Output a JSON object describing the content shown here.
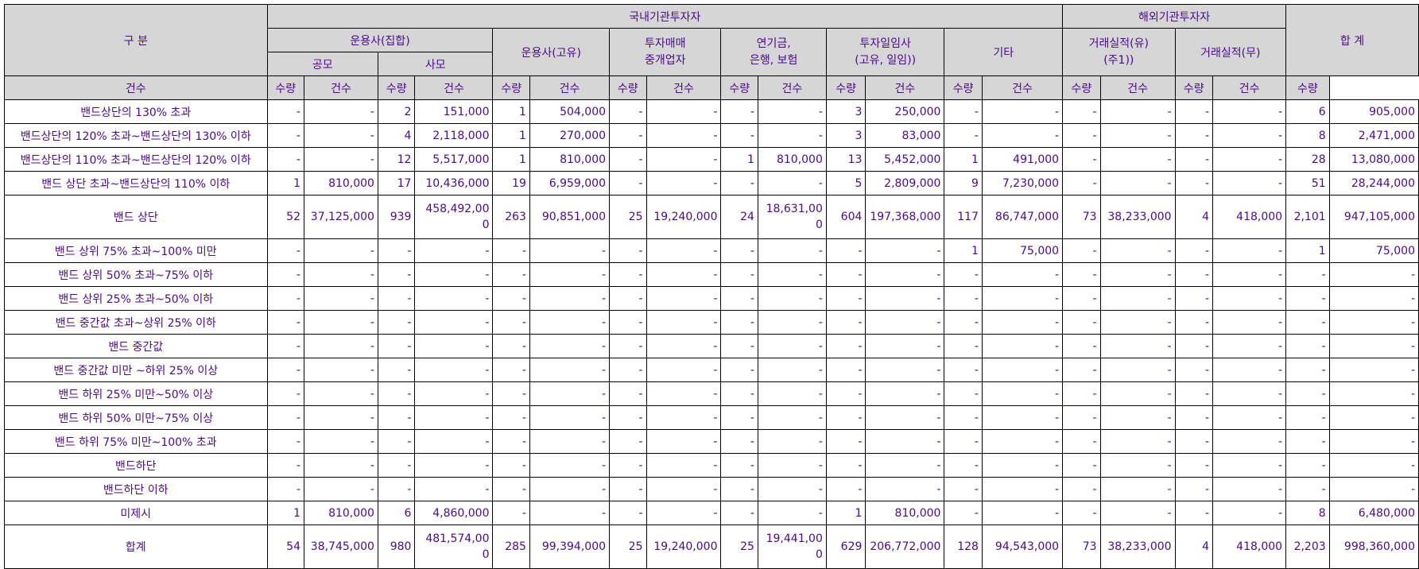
{
  "headers": {
    "category": "구 분",
    "domestic": "국내기관투자자",
    "overseas": "해외기관투자자",
    "total": "합 계",
    "am_collective": "운용사(집합)",
    "public": "공모",
    "private": "사모",
    "am_proprietary": "운용사(고유)",
    "broker": "투자매매\n중개업자",
    "pension": "연기금,\n은행, 보험",
    "advisor": "투자일임사\n(고유, 일임))",
    "other": "기타",
    "with_record": "거래실적(유)\n(주1))",
    "without_record": "거래실적(무)",
    "count": "건수",
    "quantity": "수량"
  },
  "rows": [
    {
      "label": "밴드상단의 130% 초과",
      "cells": [
        "-",
        "-",
        "2",
        "151,000",
        "1",
        "504,000",
        "-",
        "-",
        "-",
        "-",
        "3",
        "250,000",
        "-",
        "-",
        "-",
        "-",
        "-",
        "-",
        "6",
        "905,000"
      ]
    },
    {
      "label": "밴드상단의 120% 초과~밴드상단의 130% 이하",
      "cells": [
        "-",
        "-",
        "4",
        "2,118,000",
        "1",
        "270,000",
        "-",
        "-",
        "-",
        "-",
        "3",
        "83,000",
        "-",
        "-",
        "-",
        "-",
        "-",
        "-",
        "8",
        "2,471,000"
      ]
    },
    {
      "label": "밴드상단의 110% 초과~밴드상단의 120% 이하",
      "cells": [
        "-",
        "-",
        "12",
        "5,517,000",
        "1",
        "810,000",
        "-",
        "-",
        "1",
        "810,000",
        "13",
        "5,452,000",
        "1",
        "491,000",
        "-",
        "-",
        "-",
        "-",
        "28",
        "13,080,000"
      ]
    },
    {
      "label": "밴드 상단 초과~밴드상단의 110% 이하",
      "cells": [
        "1",
        "810,000",
        "17",
        "10,436,000",
        "19",
        "6,959,000",
        "-",
        "-",
        "-",
        "-",
        "5",
        "2,809,000",
        "9",
        "7,230,000",
        "-",
        "-",
        "-",
        "-",
        "51",
        "28,244,000"
      ]
    },
    {
      "label": "밴드 상단",
      "tall": true,
      "cells": [
        "52",
        "37,125,000",
        "939",
        "458,492,000",
        "263",
        "90,851,000",
        "25",
        "19,240,000",
        "24",
        "18,631,000",
        "604",
        "197,368,000",
        "117",
        "86,747,000",
        "73",
        "38,233,000",
        "4",
        "418,000",
        "2,101",
        "947,105,000"
      ]
    },
    {
      "label": "밴드 상위 75% 초과~100% 미만",
      "cells": [
        "-",
        "-",
        "-",
        "-",
        "-",
        "-",
        "-",
        "-",
        "-",
        "-",
        "-",
        "-",
        "1",
        "75,000",
        "-",
        "-",
        "-",
        "-",
        "1",
        "75,000"
      ]
    },
    {
      "label": "밴드 상위 50% 초과~75% 이하",
      "cells": [
        "-",
        "-",
        "-",
        "-",
        "-",
        "-",
        "-",
        "-",
        "-",
        "-",
        "-",
        "-",
        "-",
        "-",
        "-",
        "-",
        "-",
        "-",
        "-",
        "-"
      ]
    },
    {
      "label": "밴드 상위 25% 초과~50% 이하",
      "cells": [
        "-",
        "-",
        "-",
        "-",
        "-",
        "-",
        "-",
        "-",
        "-",
        "-",
        "-",
        "-",
        "-",
        "-",
        "-",
        "-",
        "-",
        "-",
        "-",
        "-"
      ]
    },
    {
      "label": "밴드 중간값 초과~상위 25% 이하",
      "cells": [
        "-",
        "-",
        "-",
        "-",
        "-",
        "-",
        "-",
        "-",
        "-",
        "-",
        "-",
        "-",
        "-",
        "-",
        "-",
        "-",
        "-",
        "-",
        "-",
        "-"
      ]
    },
    {
      "label": "밴드 중간값",
      "cells": [
        "-",
        "-",
        "-",
        "-",
        "-",
        "-",
        "-",
        "-",
        "-",
        "-",
        "-",
        "-",
        "-",
        "-",
        "-",
        "-",
        "-",
        "-",
        "-",
        "-"
      ]
    },
    {
      "label": "밴드 중간값 미만 ~하위 25% 이상",
      "cells": [
        "-",
        "-",
        "-",
        "-",
        "-",
        "-",
        "-",
        "-",
        "-",
        "-",
        "-",
        "-",
        "-",
        "-",
        "-",
        "-",
        "-",
        "-",
        "-",
        "-"
      ]
    },
    {
      "label": "밴드 하위 25% 미만~50% 이상",
      "cells": [
        "-",
        "-",
        "-",
        "-",
        "-",
        "-",
        "-",
        "-",
        "-",
        "-",
        "-",
        "-",
        "-",
        "-",
        "-",
        "-",
        "-",
        "-",
        "-",
        "-"
      ]
    },
    {
      "label": "밴드 하위 50% 미만~75% 이상",
      "cells": [
        "-",
        "-",
        "-",
        "-",
        "-",
        "-",
        "-",
        "-",
        "-",
        "-",
        "-",
        "-",
        "-",
        "-",
        "-",
        "-",
        "-",
        "-",
        "-",
        "-"
      ]
    },
    {
      "label": "밴드 하위 75% 미만~100% 초과",
      "cells": [
        "-",
        "-",
        "-",
        "-",
        "-",
        "-",
        "-",
        "-",
        "-",
        "-",
        "-",
        "-",
        "-",
        "-",
        "-",
        "-",
        "-",
        "-",
        "-",
        "-"
      ]
    },
    {
      "label": "밴드하단",
      "cells": [
        "-",
        "-",
        "-",
        "-",
        "-",
        "-",
        "-",
        "-",
        "-",
        "-",
        "-",
        "-",
        "-",
        "-",
        "-",
        "-",
        "-",
        "-",
        "-",
        "-"
      ]
    },
    {
      "label": "밴드하단 이하",
      "cells": [
        "-",
        "-",
        "-",
        "-",
        "-",
        "-",
        "-",
        "-",
        "-",
        "-",
        "-",
        "-",
        "-",
        "-",
        "-",
        "-",
        "-",
        "-",
        "-",
        "-"
      ]
    },
    {
      "label": "미제시",
      "cells": [
        "1",
        "810,000",
        "6",
        "4,860,000",
        "-",
        "-",
        "-",
        "-",
        "-",
        "-",
        "1",
        "810,000",
        "-",
        "-",
        "-",
        "-",
        "-",
        "-",
        "8",
        "6,480,000"
      ]
    },
    {
      "label": "합계",
      "tall": true,
      "cells": [
        "54",
        "38,745,000",
        "980",
        "481,574,000",
        "285",
        "99,394,000",
        "25",
        "19,240,000",
        "25",
        "19,441,000",
        "629",
        "206,772,000",
        "128",
        "94,543,000",
        "73",
        "38,233,000",
        "4",
        "418,000",
        "2,203",
        "998,360,000"
      ]
    }
  ]
}
